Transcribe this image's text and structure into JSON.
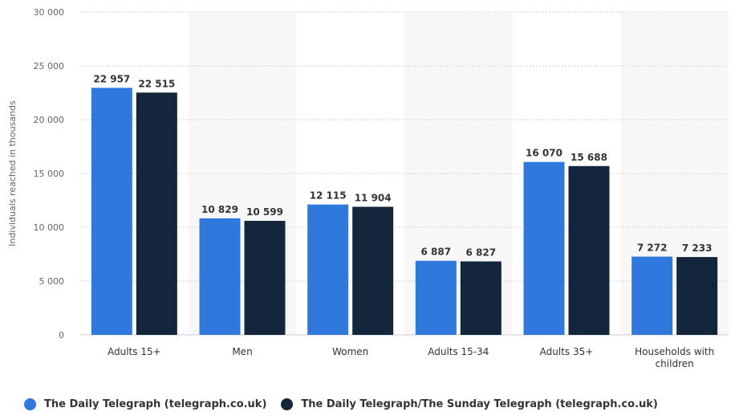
{
  "chart_data": {
    "type": "bar",
    "ylabel": "Individuals reached in thousands",
    "ylim": [
      0,
      30000
    ],
    "yticks": [
      0,
      5000,
      10000,
      15000,
      20000,
      25000,
      30000
    ],
    "ytick_labels": [
      "0",
      "5 000",
      "10 000",
      "15 000",
      "20 000",
      "25 000",
      "30 000"
    ],
    "categories": [
      "Adults 15+",
      "Men",
      "Women",
      "Adults 15-34",
      "Adults 35+",
      "Households with children"
    ],
    "category_label_lines": [
      [
        "Adults 15+"
      ],
      [
        "Men"
      ],
      [
        "Women"
      ],
      [
        "Adults 15-34"
      ],
      [
        "Adults 35+"
      ],
      [
        "Households with",
        "children"
      ]
    ],
    "series": [
      {
        "name": "The Daily Telegraph (telegraph.co.uk)",
        "color": "#2f78dc",
        "values": [
          22957,
          10829,
          12115,
          6887,
          16070,
          7272
        ],
        "labels": [
          "22 957",
          "10 829",
          "12 115",
          "6 887",
          "16 070",
          "7 272"
        ]
      },
      {
        "name": "The Daily Telegraph/The Sunday Telegraph (telegraph.co.uk)",
        "color": "#13263c",
        "values": [
          22515,
          10599,
          11904,
          6827,
          15688,
          7233
        ],
        "labels": [
          "22 515",
          "10 599",
          "11 904",
          "6 827",
          "15 688",
          "7 233"
        ]
      }
    ],
    "grid": true,
    "legend_position": "bottom-left"
  }
}
